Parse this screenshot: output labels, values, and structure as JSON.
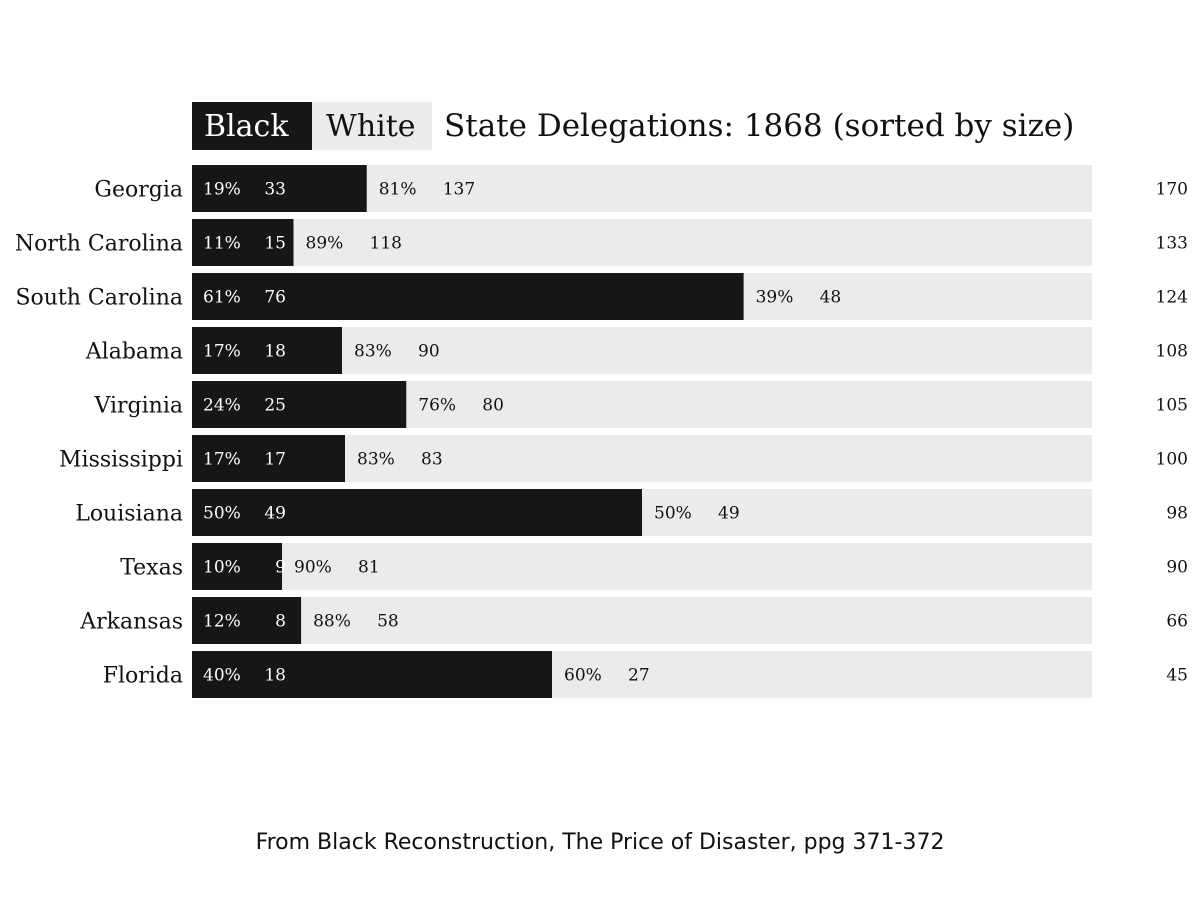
{
  "colors": {
    "black": "#161616",
    "white_bg": "#ebebeb",
    "text_dark": "#111111",
    "text_light": "#ffffff"
  },
  "chart_data": {
    "type": "bar",
    "stacked": true,
    "orientation": "horizontal",
    "title": "State Delegations: 1868 (sorted by size)",
    "legend": [
      "Black",
      "White"
    ],
    "legend_placement": "top-left",
    "categories": [
      "Georgia",
      "North Carolina",
      "South Carolina",
      "Alabama",
      "Virginia",
      "Mississippi",
      "Louisiana",
      "Texas",
      "Arkansas",
      "Florida"
    ],
    "series": [
      {
        "name": "Black",
        "values": [
          33,
          15,
          76,
          18,
          25,
          17,
          49,
          9,
          8,
          18
        ],
        "percent_labels": [
          "19%",
          "11%",
          "61%",
          "17%",
          "24%",
          "17%",
          "50%",
          "10%",
          "12%",
          "40%"
        ]
      },
      {
        "name": "White",
        "values": [
          137,
          118,
          48,
          90,
          80,
          83,
          49,
          81,
          58,
          27
        ],
        "percent_labels": [
          "81%",
          "89%",
          "39%",
          "83%",
          "76%",
          "83%",
          "50%",
          "90%",
          "88%",
          "60%"
        ]
      }
    ],
    "totals": [
      170,
      133,
      124,
      108,
      105,
      100,
      98,
      90,
      66,
      45
    ],
    "grid": false
  },
  "caption": "From Black Reconstruction, The Price of Disaster, ppg 371-372"
}
